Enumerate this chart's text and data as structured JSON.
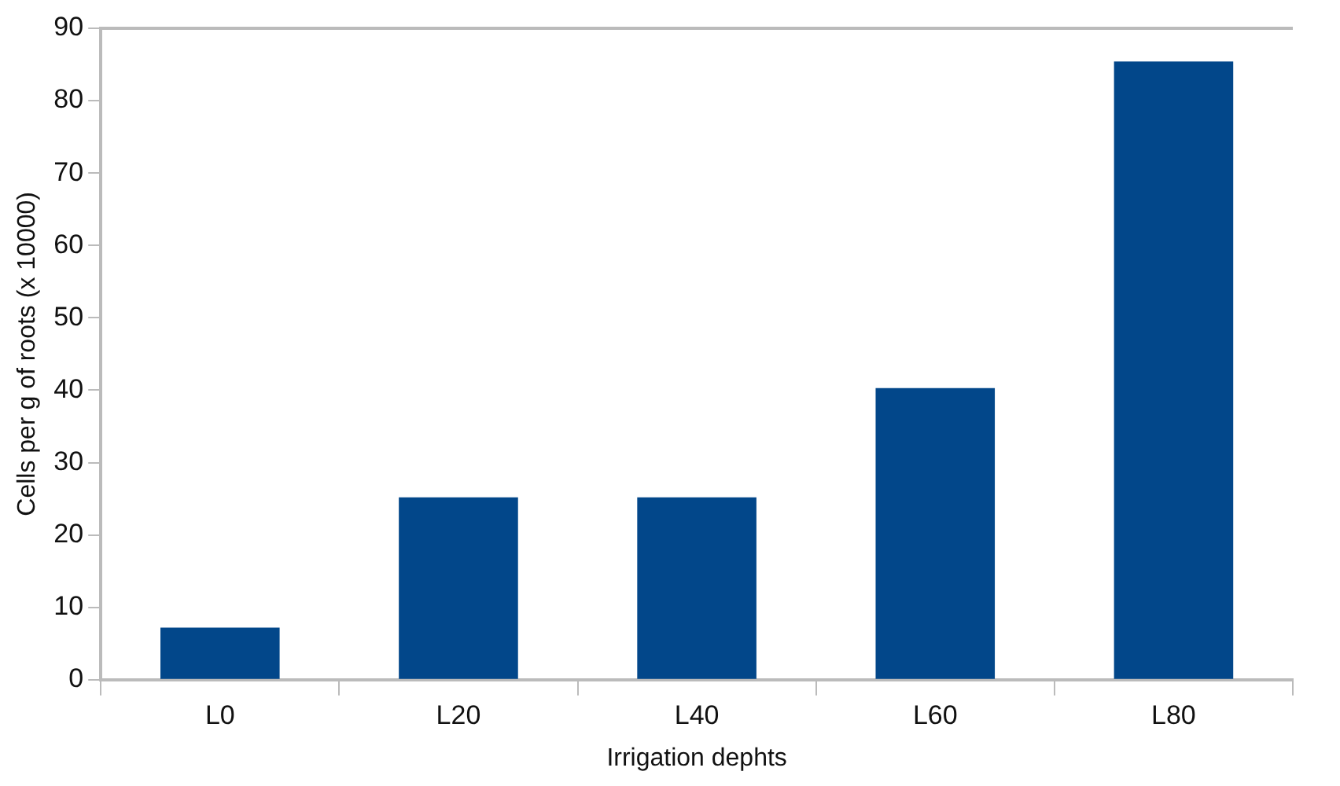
{
  "chart_data": {
    "type": "bar",
    "xlabel": "Irrigation dephts",
    "ylabel": "Cells per g of roots (x 10000)",
    "categories": [
      "L0",
      "L20",
      "L40",
      "L60",
      "L80"
    ],
    "values": [
      7.2,
      25.2,
      25.2,
      40.3,
      85.4
    ],
    "color": "#02478a",
    "ylim": [
      0,
      90
    ],
    "yticks": [
      0,
      10,
      20,
      30,
      40,
      50,
      60,
      70,
      80,
      90
    ],
    "grid": false,
    "legend": false
  }
}
